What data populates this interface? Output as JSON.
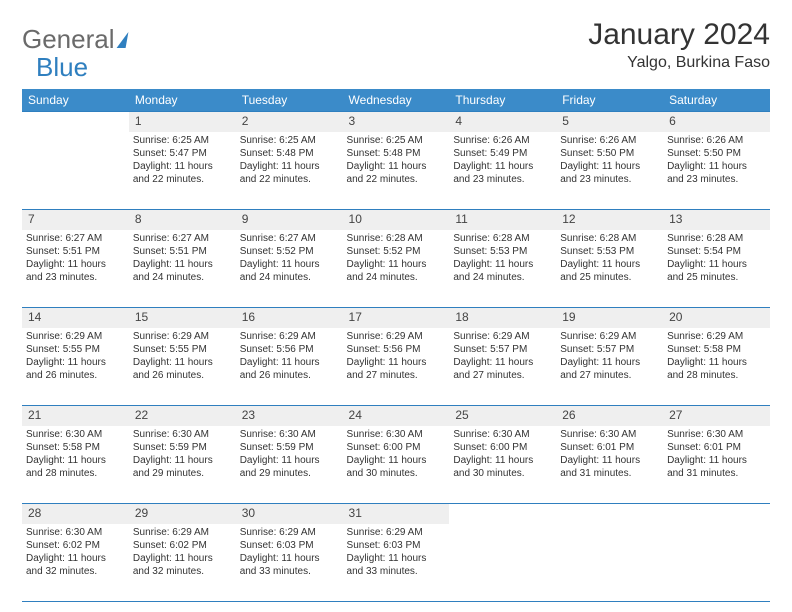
{
  "logo": {
    "part1": "General",
    "part2": "Blue"
  },
  "title": "January 2024",
  "location": "Yalgo, Burkina Faso",
  "colors": {
    "header_bg": "#3b8bc9",
    "rule": "#2f7fbf",
    "daynum_bg": "#efefef",
    "text": "#333333"
  },
  "dayHeaders": [
    "Sunday",
    "Monday",
    "Tuesday",
    "Wednesday",
    "Thursday",
    "Friday",
    "Saturday"
  ],
  "weeks": [
    [
      null,
      {
        "n": "1",
        "sr": "Sunrise: 6:25 AM",
        "ss": "Sunset: 5:47 PM",
        "d1": "Daylight: 11 hours",
        "d2": "and 22 minutes."
      },
      {
        "n": "2",
        "sr": "Sunrise: 6:25 AM",
        "ss": "Sunset: 5:48 PM",
        "d1": "Daylight: 11 hours",
        "d2": "and 22 minutes."
      },
      {
        "n": "3",
        "sr": "Sunrise: 6:25 AM",
        "ss": "Sunset: 5:48 PM",
        "d1": "Daylight: 11 hours",
        "d2": "and 22 minutes."
      },
      {
        "n": "4",
        "sr": "Sunrise: 6:26 AM",
        "ss": "Sunset: 5:49 PM",
        "d1": "Daylight: 11 hours",
        "d2": "and 23 minutes."
      },
      {
        "n": "5",
        "sr": "Sunrise: 6:26 AM",
        "ss": "Sunset: 5:50 PM",
        "d1": "Daylight: 11 hours",
        "d2": "and 23 minutes."
      },
      {
        "n": "6",
        "sr": "Sunrise: 6:26 AM",
        "ss": "Sunset: 5:50 PM",
        "d1": "Daylight: 11 hours",
        "d2": "and 23 minutes."
      }
    ],
    [
      {
        "n": "7",
        "sr": "Sunrise: 6:27 AM",
        "ss": "Sunset: 5:51 PM",
        "d1": "Daylight: 11 hours",
        "d2": "and 23 minutes."
      },
      {
        "n": "8",
        "sr": "Sunrise: 6:27 AM",
        "ss": "Sunset: 5:51 PM",
        "d1": "Daylight: 11 hours",
        "d2": "and 24 minutes."
      },
      {
        "n": "9",
        "sr": "Sunrise: 6:27 AM",
        "ss": "Sunset: 5:52 PM",
        "d1": "Daylight: 11 hours",
        "d2": "and 24 minutes."
      },
      {
        "n": "10",
        "sr": "Sunrise: 6:28 AM",
        "ss": "Sunset: 5:52 PM",
        "d1": "Daylight: 11 hours",
        "d2": "and 24 minutes."
      },
      {
        "n": "11",
        "sr": "Sunrise: 6:28 AM",
        "ss": "Sunset: 5:53 PM",
        "d1": "Daylight: 11 hours",
        "d2": "and 24 minutes."
      },
      {
        "n": "12",
        "sr": "Sunrise: 6:28 AM",
        "ss": "Sunset: 5:53 PM",
        "d1": "Daylight: 11 hours",
        "d2": "and 25 minutes."
      },
      {
        "n": "13",
        "sr": "Sunrise: 6:28 AM",
        "ss": "Sunset: 5:54 PM",
        "d1": "Daylight: 11 hours",
        "d2": "and 25 minutes."
      }
    ],
    [
      {
        "n": "14",
        "sr": "Sunrise: 6:29 AM",
        "ss": "Sunset: 5:55 PM",
        "d1": "Daylight: 11 hours",
        "d2": "and 26 minutes."
      },
      {
        "n": "15",
        "sr": "Sunrise: 6:29 AM",
        "ss": "Sunset: 5:55 PM",
        "d1": "Daylight: 11 hours",
        "d2": "and 26 minutes."
      },
      {
        "n": "16",
        "sr": "Sunrise: 6:29 AM",
        "ss": "Sunset: 5:56 PM",
        "d1": "Daylight: 11 hours",
        "d2": "and 26 minutes."
      },
      {
        "n": "17",
        "sr": "Sunrise: 6:29 AM",
        "ss": "Sunset: 5:56 PM",
        "d1": "Daylight: 11 hours",
        "d2": "and 27 minutes."
      },
      {
        "n": "18",
        "sr": "Sunrise: 6:29 AM",
        "ss": "Sunset: 5:57 PM",
        "d1": "Daylight: 11 hours",
        "d2": "and 27 minutes."
      },
      {
        "n": "19",
        "sr": "Sunrise: 6:29 AM",
        "ss": "Sunset: 5:57 PM",
        "d1": "Daylight: 11 hours",
        "d2": "and 27 minutes."
      },
      {
        "n": "20",
        "sr": "Sunrise: 6:29 AM",
        "ss": "Sunset: 5:58 PM",
        "d1": "Daylight: 11 hours",
        "d2": "and 28 minutes."
      }
    ],
    [
      {
        "n": "21",
        "sr": "Sunrise: 6:30 AM",
        "ss": "Sunset: 5:58 PM",
        "d1": "Daylight: 11 hours",
        "d2": "and 28 minutes."
      },
      {
        "n": "22",
        "sr": "Sunrise: 6:30 AM",
        "ss": "Sunset: 5:59 PM",
        "d1": "Daylight: 11 hours",
        "d2": "and 29 minutes."
      },
      {
        "n": "23",
        "sr": "Sunrise: 6:30 AM",
        "ss": "Sunset: 5:59 PM",
        "d1": "Daylight: 11 hours",
        "d2": "and 29 minutes."
      },
      {
        "n": "24",
        "sr": "Sunrise: 6:30 AM",
        "ss": "Sunset: 6:00 PM",
        "d1": "Daylight: 11 hours",
        "d2": "and 30 minutes."
      },
      {
        "n": "25",
        "sr": "Sunrise: 6:30 AM",
        "ss": "Sunset: 6:00 PM",
        "d1": "Daylight: 11 hours",
        "d2": "and 30 minutes."
      },
      {
        "n": "26",
        "sr": "Sunrise: 6:30 AM",
        "ss": "Sunset: 6:01 PM",
        "d1": "Daylight: 11 hours",
        "d2": "and 31 minutes."
      },
      {
        "n": "27",
        "sr": "Sunrise: 6:30 AM",
        "ss": "Sunset: 6:01 PM",
        "d1": "Daylight: 11 hours",
        "d2": "and 31 minutes."
      }
    ],
    [
      {
        "n": "28",
        "sr": "Sunrise: 6:30 AM",
        "ss": "Sunset: 6:02 PM",
        "d1": "Daylight: 11 hours",
        "d2": "and 32 minutes."
      },
      {
        "n": "29",
        "sr": "Sunrise: 6:29 AM",
        "ss": "Sunset: 6:02 PM",
        "d1": "Daylight: 11 hours",
        "d2": "and 32 minutes."
      },
      {
        "n": "30",
        "sr": "Sunrise: 6:29 AM",
        "ss": "Sunset: 6:03 PM",
        "d1": "Daylight: 11 hours",
        "d2": "and 33 minutes."
      },
      {
        "n": "31",
        "sr": "Sunrise: 6:29 AM",
        "ss": "Sunset: 6:03 PM",
        "d1": "Daylight: 11 hours",
        "d2": "and 33 minutes."
      },
      null,
      null,
      null
    ]
  ]
}
